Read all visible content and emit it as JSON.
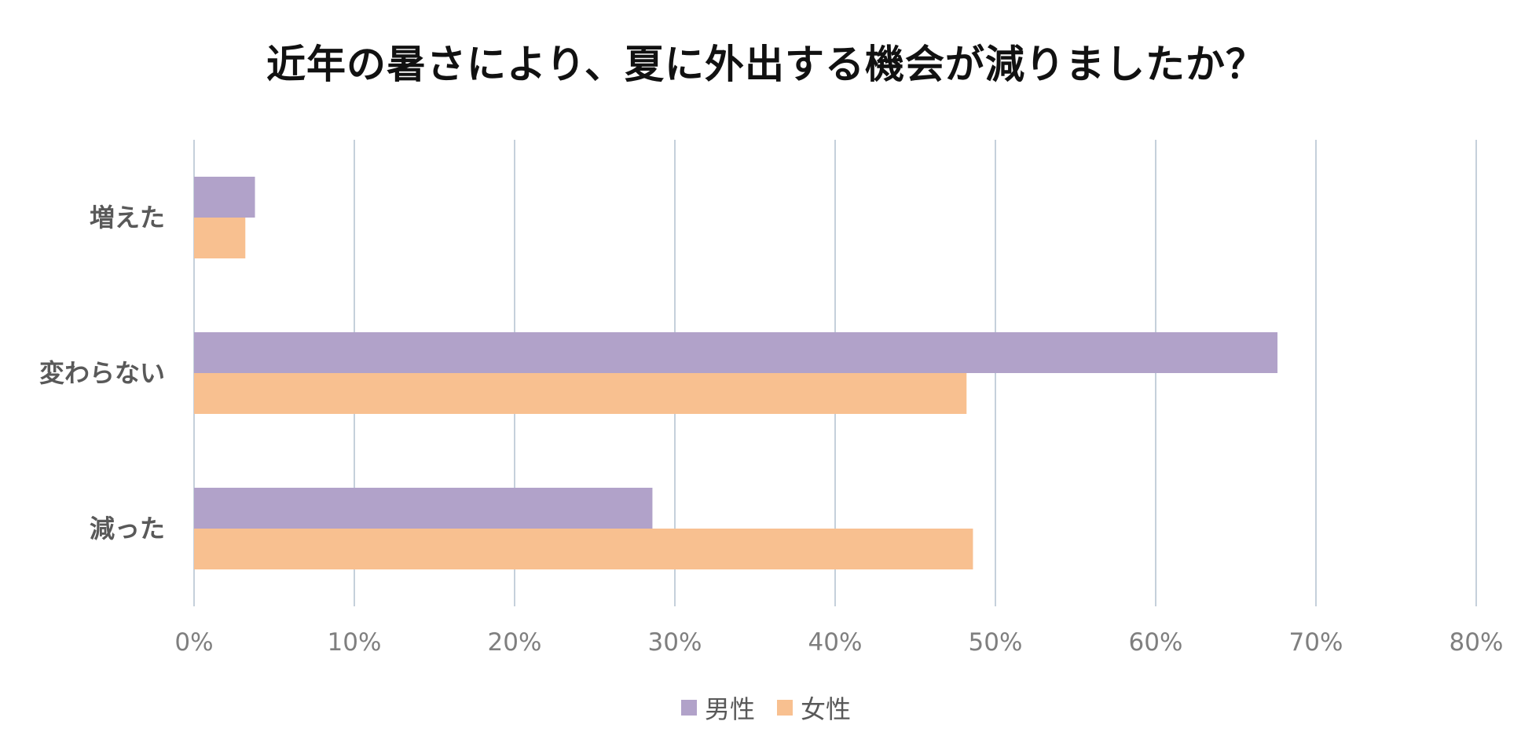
{
  "chart_data": {
    "type": "bar",
    "orientation": "horizontal",
    "title": "近年の暑さにより、夏に外出する機会が減りましたか？",
    "categories": [
      "増えた",
      "変わらない",
      "減った"
    ],
    "series": [
      {
        "name": "男性",
        "color": "#B1A2C9",
        "values": [
          3.8,
          67.6,
          28.6
        ]
      },
      {
        "name": "女性",
        "color": "#F8C090",
        "values": [
          3.2,
          48.2,
          48.6
        ]
      }
    ],
    "xlim": [
      0,
      80
    ],
    "xticks": [
      "0%",
      "10%",
      "20%",
      "30%",
      "40%",
      "50%",
      "60%",
      "70%",
      "80%"
    ],
    "grid": true,
    "gridColor": "#C5D0DB",
    "legend": "bottom-center"
  }
}
